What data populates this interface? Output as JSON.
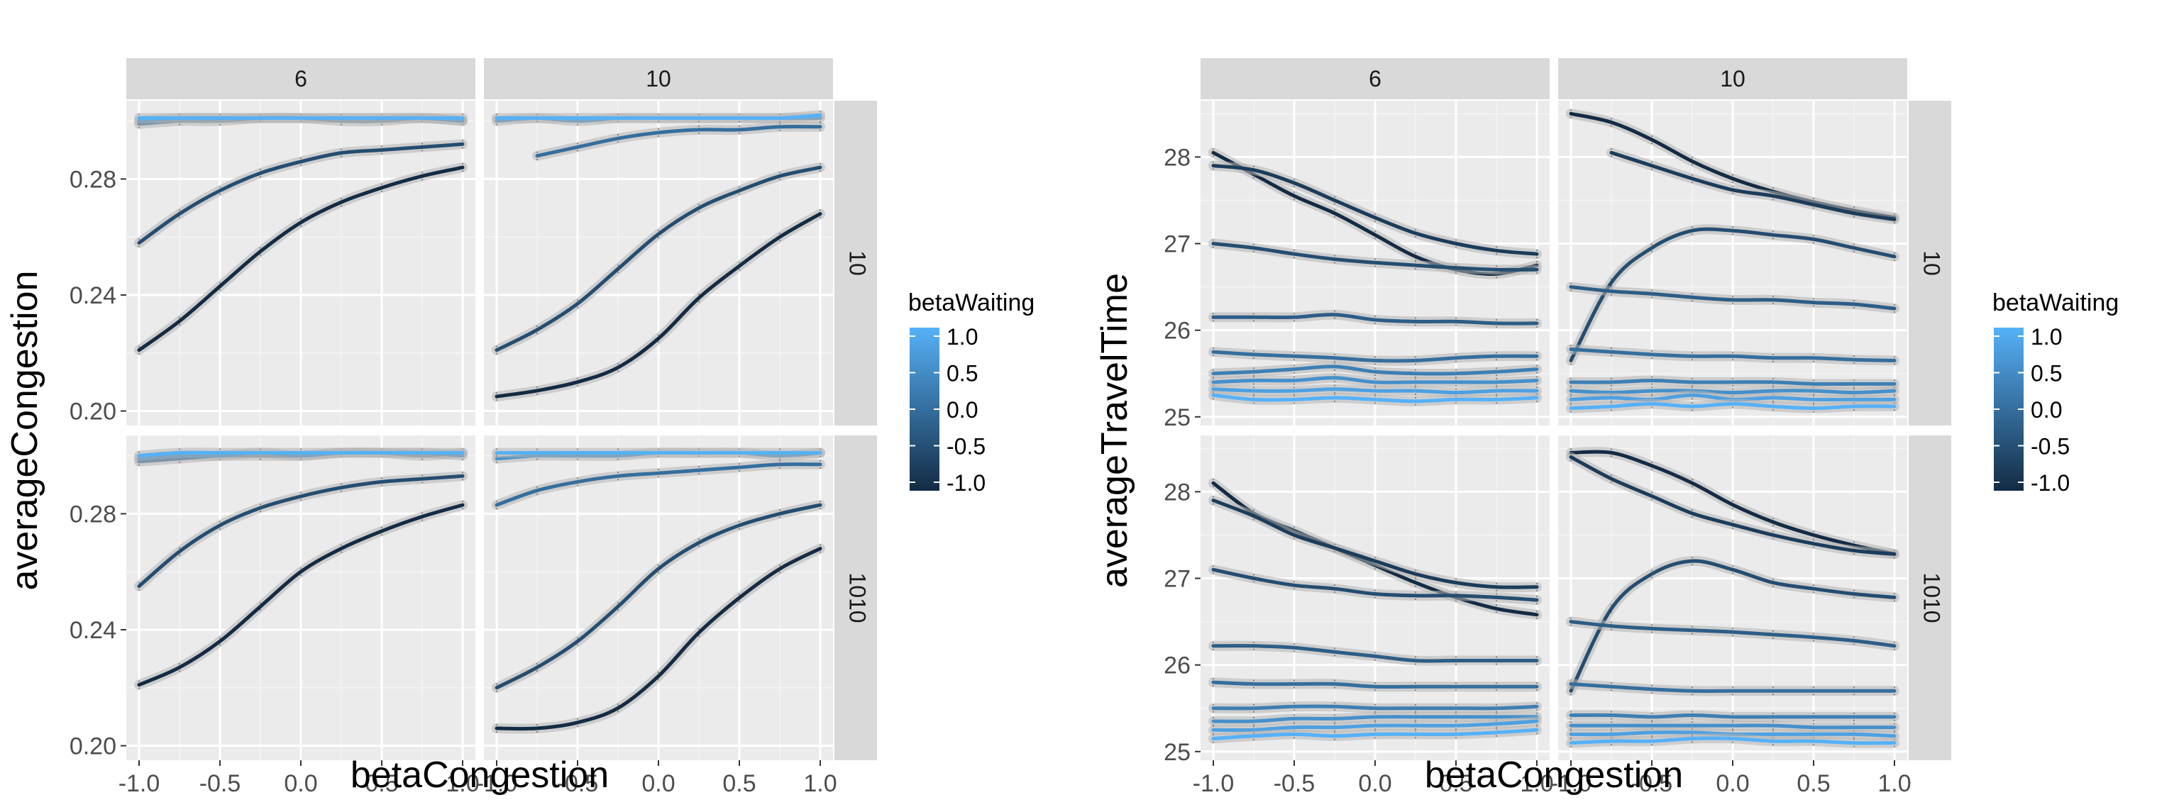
{
  "chart_data": [
    {
      "type": "line",
      "xlabel": "betaCongestion",
      "ylabel": "averageCongestion",
      "xlim": [
        -1,
        1
      ],
      "ylim": [
        0.195,
        0.307
      ],
      "x_ticks": [
        -1,
        -0.5,
        0,
        0.5,
        1
      ],
      "x_tick_labels": [
        "-1.0",
        "-0.5",
        "0.0",
        "0.5",
        "1.0"
      ],
      "y_ticks": [
        0.2,
        0.24,
        0.28
      ],
      "y_tick_labels": [
        "0.20",
        "0.24",
        "0.28"
      ],
      "col_facets": [
        "6",
        "10"
      ],
      "row_facets": [
        "10",
        "1010"
      ],
      "grid": true,
      "legend": {
        "title": "betaWaiting",
        "placement": "right",
        "labels": [
          "1.0",
          "0.5",
          "0.0",
          "-0.5",
          "-1.0"
        ],
        "color_low": "#132B43",
        "color_high": "#56B1F7"
      },
      "x": [
        -1,
        -0.75,
        -0.5,
        -0.25,
        0,
        0.25,
        0.5,
        0.75,
        1
      ],
      "panels": [
        {
          "row": "10",
          "col": "6",
          "series": [
            {
              "bw": 1.0,
              "values": [
                0.301,
                0.301,
                0.301,
                0.301,
                0.301,
                0.301,
                0.301,
                0.301,
                0.301
              ]
            },
            {
              "bw": 0.5,
              "values": [
                0.3,
                0.301,
                0.301,
                0.301,
                0.301,
                0.301,
                0.301,
                0.301,
                0.3
              ]
            },
            {
              "bw": 0.0,
              "values": [
                0.299,
                0.3,
                0.3,
                0.301,
                0.301,
                0.3,
                0.3,
                0.301,
                0.3
              ]
            },
            {
              "bw": -0.5,
              "values": [
                0.258,
                0.268,
                0.276,
                0.282,
                0.286,
                0.289,
                0.29,
                0.291,
                0.292
              ]
            },
            {
              "bw": -1.0,
              "values": [
                0.221,
                0.231,
                0.243,
                0.255,
                0.265,
                0.272,
                0.277,
                0.281,
                0.284
              ]
            }
          ]
        },
        {
          "row": "10",
          "col": "10",
          "series": [
            {
              "bw": 1.0,
              "values": [
                0.301,
                0.301,
                0.301,
                0.301,
                0.301,
                0.301,
                0.301,
                0.301,
                0.302
              ]
            },
            {
              "bw": 0.5,
              "values": [
                0.3,
                0.301,
                0.3,
                0.301,
                0.301,
                0.301,
                0.301,
                0.301,
                0.301
              ]
            },
            {
              "bw": 0.0,
              "values": [
                null,
                0.288,
                0.291,
                0.294,
                0.296,
                0.297,
                0.297,
                0.298,
                0.298
              ]
            },
            {
              "bw": -0.5,
              "values": [
                0.221,
                0.228,
                0.237,
                0.249,
                0.261,
                0.27,
                0.276,
                0.281,
                0.284
              ]
            },
            {
              "bw": -1.0,
              "values": [
                0.205,
                0.207,
                0.21,
                0.215,
                0.225,
                0.239,
                0.25,
                0.26,
                0.268
              ]
            }
          ]
        },
        {
          "row": "1010",
          "col": "6",
          "series": [
            {
              "bw": 1.0,
              "values": [
                0.3,
                0.301,
                0.301,
                0.301,
                0.301,
                0.301,
                0.301,
                0.301,
                0.301
              ]
            },
            {
              "bw": 0.5,
              "values": [
                0.299,
                0.3,
                0.3,
                0.301,
                0.3,
                0.301,
                0.301,
                0.301,
                0.3
              ]
            },
            {
              "bw": 0.0,
              "values": [
                0.298,
                0.299,
                0.3,
                0.3,
                0.3,
                0.301,
                0.301,
                0.3,
                0.301
              ]
            },
            {
              "bw": -0.5,
              "values": [
                0.255,
                0.267,
                0.276,
                0.282,
                0.286,
                0.289,
                0.291,
                0.292,
                0.293
              ]
            },
            {
              "bw": -1.0,
              "values": [
                0.221,
                0.227,
                0.236,
                0.248,
                0.26,
                0.268,
                0.274,
                0.279,
                0.283
              ]
            }
          ]
        },
        {
          "row": "1010",
          "col": "10",
          "series": [
            {
              "bw": 1.0,
              "values": [
                0.301,
                0.301,
                0.301,
                0.301,
                0.301,
                0.301,
                0.301,
                0.301,
                0.301
              ]
            },
            {
              "bw": 0.5,
              "values": [
                0.299,
                0.3,
                0.3,
                0.3,
                0.301,
                0.301,
                0.301,
                0.3,
                0.301
              ]
            },
            {
              "bw": 0.0,
              "values": [
                0.283,
                0.288,
                0.291,
                0.293,
                0.294,
                0.295,
                0.296,
                0.297,
                0.297
              ]
            },
            {
              "bw": -0.5,
              "values": [
                0.22,
                0.227,
                0.236,
                0.248,
                0.261,
                0.27,
                0.276,
                0.28,
                0.283
              ]
            },
            {
              "bw": -1.0,
              "values": [
                0.206,
                0.206,
                0.208,
                0.213,
                0.224,
                0.239,
                0.251,
                0.261,
                0.268
              ]
            }
          ]
        }
      ]
    },
    {
      "type": "line",
      "xlabel": "betaCongestion",
      "ylabel": "averageTravelTime",
      "xlim": [
        -1,
        1
      ],
      "ylim": [
        24.9,
        28.65
      ],
      "x_ticks": [
        -1,
        -0.5,
        0,
        0.5,
        1
      ],
      "x_tick_labels": [
        "-1.0",
        "-0.5",
        "0.0",
        "0.5",
        "1.0"
      ],
      "y_ticks": [
        25,
        26,
        27,
        28
      ],
      "y_tick_labels": [
        "25",
        "26",
        "27",
        "28"
      ],
      "col_facets": [
        "6",
        "10"
      ],
      "row_facets": [
        "10",
        "1010"
      ],
      "grid": true,
      "legend": {
        "title": "betaWaiting",
        "placement": "right",
        "labels": [
          "1.0",
          "0.5",
          "0.0",
          "-0.5",
          "-1.0"
        ],
        "color_low": "#132B43",
        "color_high": "#56B1F7"
      },
      "x": [
        -1,
        -0.75,
        -0.5,
        -0.25,
        0,
        0.25,
        0.5,
        0.75,
        1
      ],
      "panels": [
        {
          "row": "10",
          "col": "6",
          "series": [
            {
              "bw": 1.0,
              "values": [
                25.25,
                25.2,
                25.2,
                25.22,
                25.2,
                25.18,
                25.2,
                25.2,
                25.22
              ]
            },
            {
              "bw": 0.75,
              "values": [
                25.32,
                25.3,
                25.3,
                25.32,
                25.3,
                25.3,
                25.28,
                25.3,
                25.3
              ]
            },
            {
              "bw": 0.5,
              "values": [
                25.4,
                25.42,
                25.42,
                25.45,
                25.4,
                25.4,
                25.4,
                25.4,
                25.42
              ]
            },
            {
              "bw": 0.25,
              "values": [
                25.5,
                25.52,
                25.55,
                25.58,
                25.52,
                25.5,
                25.5,
                25.52,
                25.55
              ]
            },
            {
              "bw": 0.0,
              "values": [
                25.75,
                25.72,
                25.7,
                25.68,
                25.65,
                25.65,
                25.68,
                25.7,
                25.7
              ]
            },
            {
              "bw": -0.25,
              "values": [
                26.15,
                26.15,
                26.15,
                26.18,
                26.12,
                26.1,
                26.1,
                26.08,
                26.08
              ]
            },
            {
              "bw": -0.5,
              "values": [
                27.0,
                26.95,
                26.88,
                26.82,
                26.78,
                26.75,
                26.72,
                26.7,
                26.7
              ]
            },
            {
              "bw": -0.75,
              "values": [
                27.9,
                27.85,
                27.7,
                27.5,
                27.3,
                27.12,
                27.0,
                26.92,
                26.88
              ]
            },
            {
              "bw": -1.0,
              "values": [
                28.05,
                27.8,
                27.55,
                27.35,
                27.1,
                26.85,
                26.7,
                26.65,
                26.75
              ]
            }
          ]
        },
        {
          "row": "10",
          "col": "10",
          "series": [
            {
              "bw": 1.0,
              "values": [
                25.1,
                25.12,
                25.15,
                25.12,
                25.15,
                25.12,
                25.1,
                25.12,
                25.12
              ]
            },
            {
              "bw": 0.75,
              "values": [
                25.2,
                25.22,
                25.2,
                25.25,
                25.2,
                25.22,
                25.2,
                25.2,
                25.2
              ]
            },
            {
              "bw": 0.5,
              "values": [
                25.3,
                25.28,
                25.3,
                25.3,
                25.28,
                25.3,
                25.3,
                25.28,
                25.3
              ]
            },
            {
              "bw": 0.25,
              "values": [
                25.4,
                25.4,
                25.42,
                25.4,
                25.4,
                25.4,
                25.38,
                25.38,
                25.38
              ]
            },
            {
              "bw": 0.0,
              "values": [
                25.78,
                25.75,
                25.72,
                25.7,
                25.7,
                25.68,
                25.68,
                25.66,
                25.65
              ]
            },
            {
              "bw": -0.25,
              "values": [
                26.5,
                26.45,
                26.42,
                26.38,
                26.35,
                26.35,
                26.32,
                26.3,
                26.25
              ]
            },
            {
              "bw": -0.5,
              "values": [
                25.65,
                26.55,
                26.95,
                27.15,
                27.15,
                27.1,
                27.05,
                26.95,
                26.85
              ]
            },
            {
              "bw": -0.75,
              "values": [
                null,
                28.05,
                27.9,
                27.75,
                27.62,
                27.55,
                27.45,
                27.35,
                27.28
              ]
            },
            {
              "bw": -1.0,
              "values": [
                28.5,
                28.4,
                28.2,
                27.95,
                27.75,
                27.6,
                27.48,
                27.38,
                27.3
              ]
            }
          ]
        },
        {
          "row": "1010",
          "col": "6",
          "series": [
            {
              "bw": 1.0,
              "values": [
                25.15,
                25.18,
                25.2,
                25.18,
                25.2,
                25.2,
                25.2,
                25.22,
                25.25
              ]
            },
            {
              "bw": 0.75,
              "values": [
                25.25,
                25.25,
                25.28,
                25.28,
                25.3,
                25.3,
                25.3,
                25.32,
                25.35
              ]
            },
            {
              "bw": 0.5,
              "values": [
                25.35,
                25.35,
                25.38,
                25.38,
                25.4,
                25.4,
                25.4,
                25.4,
                25.4
              ]
            },
            {
              "bw": 0.25,
              "values": [
                25.5,
                25.5,
                25.52,
                25.52,
                25.5,
                25.5,
                25.5,
                25.5,
                25.52
              ]
            },
            {
              "bw": 0.0,
              "values": [
                25.8,
                25.78,
                25.78,
                25.78,
                25.75,
                25.75,
                25.75,
                25.75,
                25.75
              ]
            },
            {
              "bw": -0.25,
              "values": [
                26.22,
                26.22,
                26.2,
                26.15,
                26.1,
                26.05,
                26.05,
                26.05,
                26.05
              ]
            },
            {
              "bw": -0.5,
              "values": [
                27.1,
                27.0,
                26.92,
                26.88,
                26.82,
                26.8,
                26.8,
                26.78,
                26.75
              ]
            },
            {
              "bw": -0.75,
              "values": [
                27.9,
                27.72,
                27.5,
                27.35,
                27.2,
                27.05,
                26.95,
                26.9,
                26.9
              ]
            },
            {
              "bw": -1.0,
              "values": [
                28.1,
                27.75,
                27.55,
                27.35,
                27.15,
                26.95,
                26.78,
                26.65,
                26.58
              ]
            }
          ]
        },
        {
          "row": "1010",
          "col": "10",
          "series": [
            {
              "bw": 1.0,
              "values": [
                25.1,
                25.12,
                25.12,
                25.15,
                25.15,
                25.12,
                25.12,
                25.1,
                25.1
              ]
            },
            {
              "bw": 0.75,
              "values": [
                25.2,
                25.2,
                25.22,
                25.22,
                25.2,
                25.2,
                25.2,
                25.2,
                25.18
              ]
            },
            {
              "bw": 0.5,
              "values": [
                25.3,
                25.3,
                25.3,
                25.3,
                25.3,
                25.3,
                25.28,
                25.28,
                25.28
              ]
            },
            {
              "bw": 0.25,
              "values": [
                25.42,
                25.42,
                25.4,
                25.42,
                25.4,
                25.4,
                25.4,
                25.4,
                25.4
              ]
            },
            {
              "bw": 0.0,
              "values": [
                25.78,
                25.75,
                25.72,
                25.7,
                25.7,
                25.7,
                25.7,
                25.7,
                25.7
              ]
            },
            {
              "bw": -0.25,
              "values": [
                26.5,
                26.45,
                26.42,
                26.4,
                26.38,
                26.35,
                26.32,
                26.28,
                26.22
              ]
            },
            {
              "bw": -0.5,
              "values": [
                25.7,
                26.65,
                27.05,
                27.2,
                27.1,
                26.95,
                26.88,
                26.82,
                26.78
              ]
            },
            {
              "bw": -0.75,
              "values": [
                28.4,
                28.15,
                27.95,
                27.75,
                27.62,
                27.5,
                27.4,
                27.32,
                27.28
              ]
            },
            {
              "bw": -1.0,
              "values": [
                28.45,
                28.45,
                28.3,
                28.1,
                27.85,
                27.65,
                27.5,
                27.38,
                27.28
              ]
            }
          ]
        }
      ]
    }
  ]
}
